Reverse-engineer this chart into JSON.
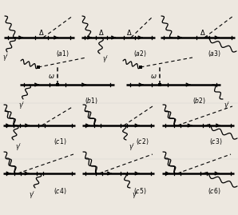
{
  "bg_color": "#ede8e0",
  "line_color": "#1a1a1a",
  "figsize": [
    2.98,
    2.69
  ],
  "dpi": 100
}
